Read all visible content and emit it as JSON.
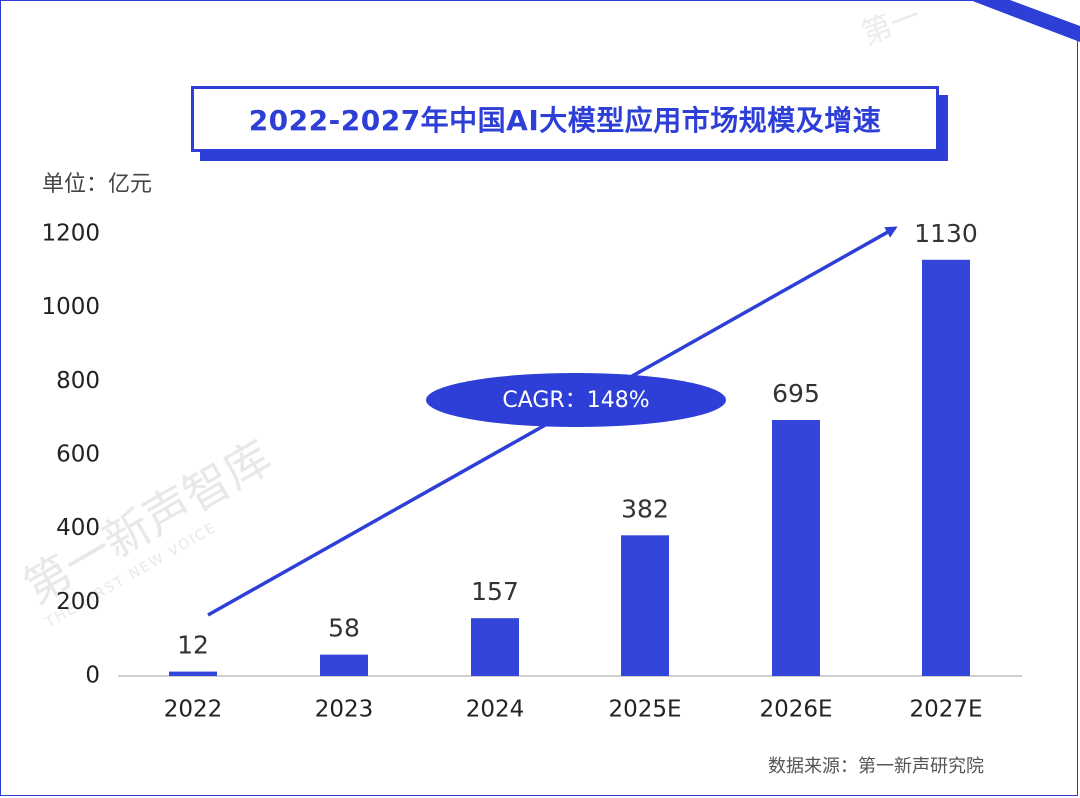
{
  "title": "2022-2027年中国AI大模型应用市场规模及增速",
  "unit_label": "单位：亿元",
  "source_label": "数据来源：第一新声研究院",
  "watermark_text": "第一新声智库",
  "watermark_sub": "THE FIRST NEW VOICE",
  "watermark_corner": "第一",
  "colors": {
    "accent": "#2d3fd6",
    "bar": "#3346d9",
    "text": "#222222"
  },
  "chart_data": {
    "type": "bar",
    "title": "2022-2027年中国AI大模型应用市场规模及增速",
    "categories": [
      "2022",
      "2023",
      "2024",
      "2025E",
      "2026E",
      "2027E"
    ],
    "values": [
      12,
      58,
      157,
      382,
      695,
      1130
    ],
    "ylabel": "单位：亿元",
    "xlabel": "",
    "ylim": [
      0,
      1200
    ],
    "yticks": [
      0,
      200,
      400,
      600,
      800,
      1000,
      1200
    ],
    "annotation": "CAGR：148%",
    "grid": false
  }
}
